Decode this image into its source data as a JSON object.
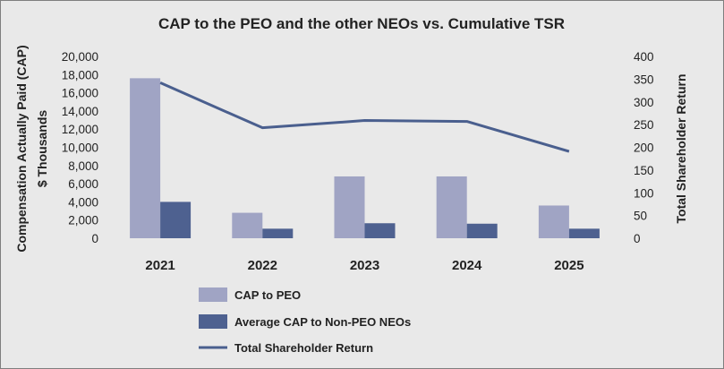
{
  "chart_data": {
    "type": "bar",
    "title": "CAP to the PEO and the other NEOs vs. Cumulative TSR",
    "categories": [
      "2021",
      "2022",
      "2023",
      "2024",
      "2025"
    ],
    "ylabel_left": [
      "Compensation Actually Paid (CAP)",
      "$ Thousands"
    ],
    "ylabel_right": "Total Shareholder Return",
    "ylim_left": [
      0,
      20000
    ],
    "ylim_right": [
      0,
      400
    ],
    "yticks_left": [
      "0",
      "2,000",
      "4,000",
      "6,000",
      "8,000",
      "10,000",
      "12,000",
      "14,000",
      "16,000",
      "18,000",
      "20,000"
    ],
    "yticks_right": [
      "0",
      "50",
      "100",
      "150",
      "200",
      "250",
      "300",
      "350",
      "400"
    ],
    "grid": false,
    "legend_position": "bottom",
    "series": [
      {
        "name": "CAP to PEO",
        "type": "bar",
        "axis": "left",
        "color": "#a0a4c4",
        "values": [
          17600,
          2800,
          6800,
          6800,
          3600
        ]
      },
      {
        "name": "Average CAP to Non-PEO NEOs",
        "type": "bar",
        "axis": "left",
        "color": "#4e6190",
        "values": [
          4000,
          1050,
          1650,
          1600,
          1050
        ]
      },
      {
        "name": "Total Shareholder Return",
        "type": "line",
        "axis": "right",
        "color": "#4a5f8e",
        "values": [
          342,
          243,
          259,
          257,
          191
        ]
      }
    ]
  }
}
